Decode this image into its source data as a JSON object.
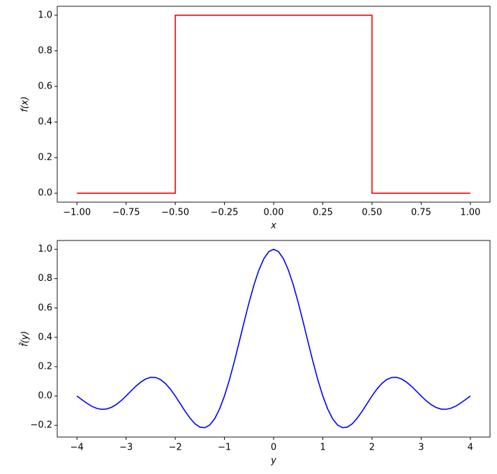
{
  "chart_data": [
    {
      "type": "line",
      "xlabel": "x",
      "ylabel": "f(x)",
      "x": [
        -1,
        -0.5,
        -0.5,
        0.5,
        0.5,
        1
      ],
      "series": [
        {
          "color": "#ff0000",
          "values": [
            0,
            0,
            1,
            1,
            0,
            0
          ]
        }
      ],
      "xlim": [
        -1.1,
        1.1
      ],
      "ylim": [
        -0.05,
        1.05
      ],
      "xticks": [
        {
          "value": -1,
          "label": "−1.00"
        },
        {
          "value": -0.75,
          "label": "−0.75"
        },
        {
          "value": -0.5,
          "label": "−0.50"
        },
        {
          "value": -0.25,
          "label": "−0.25"
        },
        {
          "value": 0,
          "label": "0.00"
        },
        {
          "value": 0.25,
          "label": "0.25"
        },
        {
          "value": 0.5,
          "label": "0.50"
        },
        {
          "value": 0.75,
          "label": "0.75"
        },
        {
          "value": 1,
          "label": "1.00"
        }
      ],
      "yticks": [
        {
          "value": 0,
          "label": "0.0"
        },
        {
          "value": 0.2,
          "label": "0.2"
        },
        {
          "value": 0.4,
          "label": "0.4"
        },
        {
          "value": 0.6,
          "label": "0.6"
        },
        {
          "value": 0.8,
          "label": "0.8"
        },
        {
          "value": 1,
          "label": "1.0"
        }
      ]
    },
    {
      "type": "line",
      "xlabel": "y",
      "ylabel": "f̂(y)",
      "x": [
        -4,
        -3.9,
        -3.8,
        -3.7,
        -3.6,
        -3.5,
        -3.4,
        -3.3,
        -3.2,
        -3.1,
        -3,
        -2.9,
        -2.8,
        -2.7,
        -2.6,
        -2.5,
        -2.4,
        -2.3,
        -2.2,
        -2.1,
        -2,
        -1.9,
        -1.8,
        -1.7,
        -1.6,
        -1.5,
        -1.4,
        -1.3,
        -1.2,
        -1.1,
        -1,
        -0.9,
        -0.8,
        -0.7,
        -0.6,
        -0.5,
        -0.4,
        -0.3,
        -0.2,
        -0.1,
        0,
        0.1,
        0.2,
        0.3,
        0.4,
        0.5,
        0.6,
        0.7,
        0.8,
        0.9,
        1,
        1.1,
        1.2,
        1.3,
        1.4,
        1.5,
        1.6,
        1.7,
        1.8,
        1.9,
        2,
        2.1,
        2.2,
        2.3,
        2.4,
        2.5,
        2.6,
        2.7,
        2.8,
        2.9,
        3,
        3.1,
        3.2,
        3.3,
        3.4,
        3.5,
        3.6,
        3.7,
        3.8,
        3.9,
        4
      ],
      "series": [
        {
          "color": "#0000ff",
          "values": [
            0,
            -0.025,
            -0.049,
            -0.07,
            -0.084,
            -0.091,
            -0.089,
            -0.078,
            -0.058,
            -0.032,
            0,
            0.034,
            0.067,
            0.095,
            0.116,
            0.127,
            0.126,
            0.112,
            0.085,
            0.047,
            0,
            -0.052,
            -0.104,
            -0.151,
            -0.189,
            -0.212,
            -0.216,
            -0.198,
            -0.156,
            -0.089,
            0,
            0.109,
            0.234,
            0.368,
            0.505,
            0.637,
            0.757,
            0.858,
            0.935,
            0.984,
            1,
            0.984,
            0.935,
            0.858,
            0.757,
            0.637,
            0.505,
            0.368,
            0.234,
            0.109,
            0,
            -0.089,
            -0.156,
            -0.198,
            -0.216,
            -0.212,
            -0.189,
            -0.151,
            -0.104,
            -0.052,
            0,
            0.047,
            0.085,
            0.112,
            0.126,
            0.127,
            0.116,
            0.095,
            0.067,
            0.034,
            0,
            -0.032,
            -0.058,
            -0.078,
            -0.089,
            -0.091,
            -0.084,
            -0.07,
            -0.049,
            -0.025,
            0
          ]
        }
      ],
      "xlim": [
        -4.4,
        4.4
      ],
      "ylim": [
        -0.28,
        1.06
      ],
      "xticks": [
        {
          "value": -4,
          "label": "−4"
        },
        {
          "value": -3,
          "label": "−3"
        },
        {
          "value": -2,
          "label": "−2"
        },
        {
          "value": -1,
          "label": "−1"
        },
        0,
        1,
        2,
        3,
        4
      ],
      "yticks": [
        {
          "value": -0.2,
          "label": "−0.2"
        },
        {
          "value": 0,
          "label": "0.0"
        },
        {
          "value": 0.2,
          "label": "0.2"
        },
        {
          "value": 0.4,
          "label": "0.4"
        },
        {
          "value": 0.6,
          "label": "0.6"
        },
        {
          "value": 0.8,
          "label": "0.8"
        },
        {
          "value": 1,
          "label": "1.0"
        }
      ]
    }
  ]
}
